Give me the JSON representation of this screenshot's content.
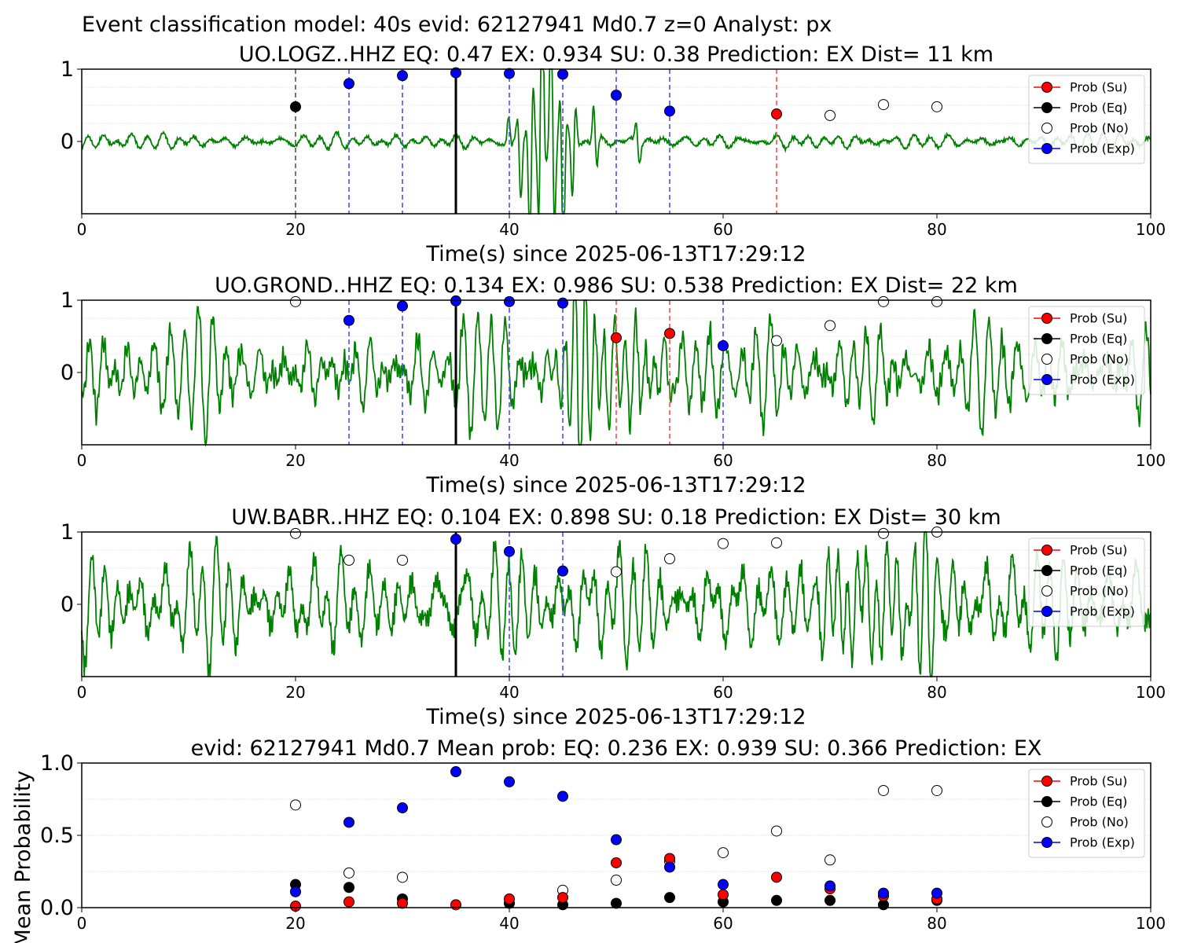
{
  "suptitle": "Event classification model: 40s evid: 62127941 Md0.7 z=0 Analyst: px",
  "legend_labels": [
    "Prob (Su)",
    "Prob (Eq)",
    "Prob (No)",
    "Prob (Exp)"
  ],
  "colors": {
    "su": "#ff0000",
    "eq": "#000000",
    "no": "#ffffff",
    "exp": "#0000ff",
    "trace": "#008000",
    "eq_line": "#555555",
    "exp_line": "#4d4dff",
    "su_line": "#ff4d4d"
  },
  "chart_data": [
    {
      "type": "line",
      "title": "UO.LOGZ..HHZ   EQ: 0.47  EX: 0.934  SU: 0.38   Prediction: EX    Dist= 11 km",
      "xlabel": "Time(s) since 2025-06-13T17:29:12",
      "ylabel": "",
      "xlim": [
        0,
        100
      ],
      "ylim": [
        -1,
        1
      ],
      "xticks": [
        "0",
        "20",
        "40",
        "60",
        "80",
        "100"
      ],
      "yticks": [
        "1",
        "0"
      ],
      "grid": "horizontal dotted",
      "legend": "top-right",
      "pick_time": 35,
      "trace": {
        "noise_amp": 0.1,
        "event": [
          [
            40,
            0.1,
            0.3
          ],
          [
            41,
            0.25,
            0.3
          ],
          [
            42,
            0.55,
            0.3
          ],
          [
            43,
            0.9,
            0.3
          ],
          [
            44,
            0.8,
            0.3
          ],
          [
            45,
            0.55,
            0.3
          ],
          [
            46,
            0.3,
            0.3
          ],
          [
            48,
            0.2,
            0.3
          ],
          [
            52,
            0.12,
            0.3
          ]
        ]
      },
      "markers": [
        {
          "t": 20,
          "class": "eq",
          "p": 0.48,
          "line": "eq"
        },
        {
          "t": 25,
          "class": "exp",
          "p": 0.8,
          "line": "exp"
        },
        {
          "t": 30,
          "class": "exp",
          "p": 0.91,
          "line": "exp"
        },
        {
          "t": 35,
          "class": "exp",
          "p": 0.95,
          "line": "none"
        },
        {
          "t": 40,
          "class": "exp",
          "p": 0.94,
          "line": "exp"
        },
        {
          "t": 45,
          "class": "exp",
          "p": 0.93,
          "line": "exp"
        },
        {
          "t": 50,
          "class": "exp",
          "p": 0.64,
          "line": "exp"
        },
        {
          "t": 55,
          "class": "exp",
          "p": 0.42,
          "line": "exp"
        },
        {
          "t": 65,
          "class": "su",
          "p": 0.38,
          "line": "su"
        },
        {
          "t": 70,
          "class": "no",
          "p": 0.36,
          "line": "none"
        },
        {
          "t": 75,
          "class": "no",
          "p": 0.51,
          "line": "none"
        },
        {
          "t": 80,
          "class": "no",
          "p": 0.48,
          "line": "none"
        }
      ]
    },
    {
      "type": "line",
      "title": "UO.GROND..HHZ   EQ: 0.134  EX: 0.986  SU: 0.538   Prediction: EX    Dist= 22 km",
      "xlabel": "Time(s) since 2025-06-13T17:29:12",
      "ylabel": "",
      "xlim": [
        0,
        100
      ],
      "ylim": [
        -1,
        1
      ],
      "xticks": [
        "0",
        "20",
        "40",
        "60",
        "80",
        "100"
      ],
      "yticks": [
        "1",
        "0"
      ],
      "grid": "horizontal dotted",
      "legend": "top-right",
      "pick_time": 35,
      "trace": {
        "noise_amp": 0.6,
        "event": [
          [
            47,
            0.35,
            2.5
          ],
          [
            52,
            0.15,
            3
          ]
        ]
      },
      "markers": [
        {
          "t": 20,
          "class": "no",
          "p": 0.98,
          "line": "none"
        },
        {
          "t": 25,
          "class": "exp",
          "p": 0.72,
          "line": "exp"
        },
        {
          "t": 30,
          "class": "exp",
          "p": 0.92,
          "line": "exp"
        },
        {
          "t": 35,
          "class": "exp",
          "p": 0.99,
          "line": "none"
        },
        {
          "t": 40,
          "class": "exp",
          "p": 0.98,
          "line": "exp"
        },
        {
          "t": 45,
          "class": "exp",
          "p": 0.96,
          "line": "exp"
        },
        {
          "t": 50,
          "class": "su",
          "p": 0.48,
          "line": "su"
        },
        {
          "t": 55,
          "class": "su",
          "p": 0.54,
          "line": "su"
        },
        {
          "t": 60,
          "class": "exp",
          "p": 0.37,
          "line": "exp"
        },
        {
          "t": 65,
          "class": "no",
          "p": 0.44,
          "line": "none"
        },
        {
          "t": 70,
          "class": "no",
          "p": 0.65,
          "line": "none"
        },
        {
          "t": 75,
          "class": "no",
          "p": 0.98,
          "line": "none"
        },
        {
          "t": 80,
          "class": "no",
          "p": 0.98,
          "line": "none"
        }
      ]
    },
    {
      "type": "line",
      "title": "UW.BABR..HHZ   EQ: 0.104  EX: 0.898  SU: 0.18   Prediction: EX    Dist= 30 km",
      "xlabel": "Time(s) since 2025-06-13T17:29:12",
      "ylabel": "",
      "xlim": [
        0,
        100
      ],
      "ylim": [
        -1,
        1
      ],
      "xticks": [
        "0",
        "20",
        "40",
        "60",
        "80",
        "100"
      ],
      "yticks": [
        "1",
        "0"
      ],
      "grid": "horizontal dotted",
      "legend": "top-right",
      "pick_time": 35,
      "trace": {
        "noise_amp": 0.65,
        "event": [
          [
            72,
            0.2,
            3
          ],
          [
            78,
            0.2,
            3
          ]
        ]
      },
      "markers": [
        {
          "t": 20,
          "class": "no",
          "p": 0.98,
          "line": "none"
        },
        {
          "t": 25,
          "class": "no",
          "p": 0.61,
          "line": "none"
        },
        {
          "t": 30,
          "class": "no",
          "p": 0.61,
          "line": "none"
        },
        {
          "t": 35,
          "class": "exp",
          "p": 0.9,
          "line": "none"
        },
        {
          "t": 40,
          "class": "exp",
          "p": 0.73,
          "line": "exp"
        },
        {
          "t": 45,
          "class": "exp",
          "p": 0.46,
          "line": "exp"
        },
        {
          "t": 50,
          "class": "no",
          "p": 0.45,
          "line": "none"
        },
        {
          "t": 55,
          "class": "no",
          "p": 0.63,
          "line": "none"
        },
        {
          "t": 60,
          "class": "no",
          "p": 0.84,
          "line": "none"
        },
        {
          "t": 65,
          "class": "no",
          "p": 0.85,
          "line": "none"
        },
        {
          "t": 75,
          "class": "no",
          "p": 0.98,
          "line": "none"
        },
        {
          "t": 80,
          "class": "no",
          "p": 1.0,
          "line": "none"
        }
      ]
    },
    {
      "type": "scatter",
      "title": "evid: 62127941  Md0.7   Mean prob:   EQ: 0.236  EX: 0.939  SU: 0.366   Prediction: EX",
      "xlabel": "",
      "ylabel": "Mean Probability",
      "xlim": [
        0,
        100
      ],
      "ylim": [
        0,
        1
      ],
      "xticks": [
        "0",
        "20",
        "40",
        "60",
        "80",
        "100"
      ],
      "yticks": [
        "0.0",
        "0.5",
        "1.0"
      ],
      "grid": "horizontal dotted",
      "legend": "top-right",
      "x": [
        20,
        25,
        30,
        35,
        40,
        45,
        50,
        55,
        60,
        65,
        70,
        75,
        80
      ],
      "series": [
        {
          "name": "Prob (No)",
          "key": "no",
          "values": [
            0.71,
            0.24,
            0.21,
            null,
            null,
            0.12,
            0.19,
            0.32,
            0.38,
            0.53,
            0.33,
            0.81,
            0.81
          ]
        },
        {
          "name": "Prob (Eq)",
          "key": "eq",
          "values": [
            0.16,
            0.14,
            0.06,
            null,
            0.03,
            0.02,
            0.03,
            0.07,
            0.04,
            0.05,
            0.05,
            0.02,
            0.05
          ]
        },
        {
          "name": "Prob (Su)",
          "key": "su",
          "values": [
            0.01,
            0.04,
            0.03,
            0.02,
            0.06,
            0.07,
            0.31,
            0.34,
            0.09,
            0.21,
            0.13,
            0.08,
            0.06
          ]
        },
        {
          "name": "Prob (Exp)",
          "key": "exp",
          "values": [
            0.11,
            0.59,
            0.69,
            0.94,
            0.87,
            0.77,
            0.47,
            0.28,
            0.16,
            null,
            0.15,
            0.1,
            0.1
          ]
        }
      ]
    }
  ]
}
